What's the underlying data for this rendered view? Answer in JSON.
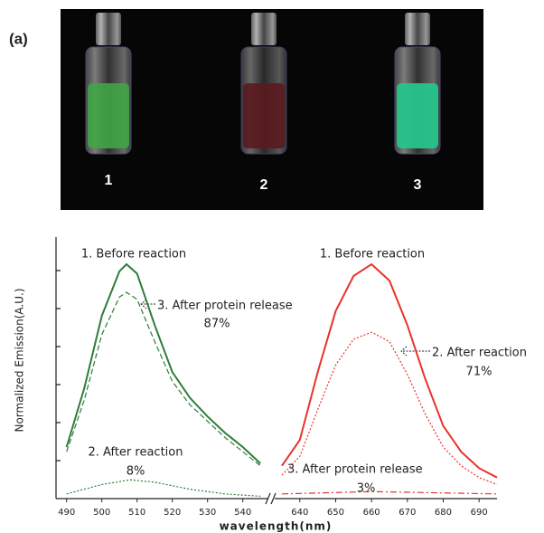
{
  "panel_label": "(a)",
  "vial_labels": [
    "1",
    "2",
    "3"
  ],
  "chart_data": {
    "type": "line",
    "ylabel": "Normalized Emission(A.U.)",
    "xlabel": "wavelength(nm)",
    "ylim": [
      0,
      1.05
    ],
    "panels": [
      {
        "xlim": [
          487,
          547
        ],
        "xticks": [
          490,
          500,
          510,
          520,
          530,
          540
        ],
        "series": [
          {
            "name": "1. Before reaction",
            "color": "#2e7d3a",
            "dash": "solid",
            "x": [
              490,
              495,
              500,
              505,
              507,
              510,
              515,
              520,
              525,
              530,
              535,
              540,
              545
            ],
            "values": [
              0.22,
              0.47,
              0.78,
              0.97,
              1.0,
              0.96,
              0.74,
              0.54,
              0.43,
              0.35,
              0.28,
              0.22,
              0.15
            ]
          },
          {
            "name": "3. After protein release",
            "note": "87%",
            "color": "#2e7d3a",
            "dash": "dashed",
            "x": [
              490,
              495,
              500,
              505,
              507,
              510,
              515,
              520,
              525,
              530,
              535,
              540,
              545
            ],
            "values": [
              0.2,
              0.42,
              0.7,
              0.86,
              0.88,
              0.85,
              0.67,
              0.5,
              0.4,
              0.33,
              0.26,
              0.2,
              0.14
            ]
          },
          {
            "name": "2. After reaction",
            "note": "8%",
            "color": "#2e7d3a",
            "dash": "dotted",
            "x": [
              490,
              500,
              508,
              515,
              525,
              535,
              545
            ],
            "values": [
              0.02,
              0.06,
              0.08,
              0.07,
              0.04,
              0.02,
              0.01
            ]
          }
        ]
      },
      {
        "xlim": [
          633,
          695
        ],
        "xticks": [
          640,
          650,
          660,
          670,
          680,
          690
        ],
        "series": [
          {
            "name": "1. Before reaction",
            "color": "#e8332a",
            "dash": "solid",
            "x": [
              635,
              640,
              645,
              650,
              655,
              660,
              665,
              670,
              675,
              680,
              685,
              690,
              695
            ],
            "values": [
              0.14,
              0.25,
              0.54,
              0.8,
              0.95,
              1.0,
              0.93,
              0.74,
              0.51,
              0.31,
              0.2,
              0.13,
              0.09
            ]
          },
          {
            "name": "2. After reaction",
            "note": "71%",
            "color": "#e8332a",
            "dash": "dotted",
            "x": [
              635,
              640,
              645,
              650,
              655,
              660,
              665,
              670,
              675,
              680,
              685,
              690,
              695
            ],
            "values": [
              0.1,
              0.18,
              0.38,
              0.57,
              0.68,
              0.71,
              0.67,
              0.53,
              0.36,
              0.22,
              0.14,
              0.09,
              0.06
            ]
          },
          {
            "name": "3. After protein release",
            "note": "3%",
            "color": "#e8332a",
            "dash": "dashdot",
            "x": [
              635,
              660,
              695
            ],
            "values": [
              0.02,
              0.03,
              0.02
            ]
          }
        ]
      }
    ]
  }
}
